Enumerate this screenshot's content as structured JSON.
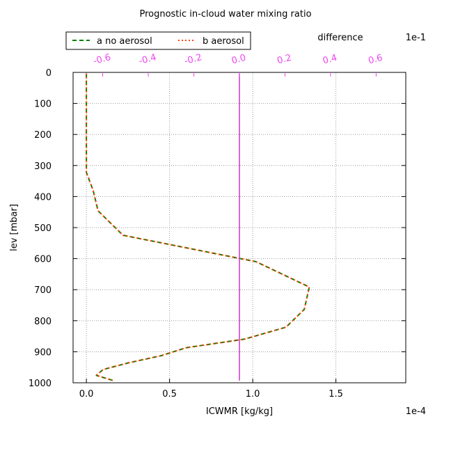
{
  "chart_data": {
    "type": "line",
    "title": "Prognostic in-cloud water mixing ratio",
    "xlabel": "ICWMR [kg/kg]",
    "ylabel": "lev [mbar]",
    "x_multiplier": "1e-4",
    "xlim": [
      -0.08,
      1.92
    ],
    "ylim": [
      1000,
      0
    ],
    "xticks": [
      0.0,
      0.5,
      1.0,
      1.5
    ],
    "xtick_labels": [
      "0.0",
      "0.5",
      "1.0",
      "1.5"
    ],
    "yticks": [
      0,
      100,
      200,
      300,
      400,
      500,
      600,
      700,
      800,
      900,
      1000
    ],
    "ytick_labels": [
      "0",
      "100",
      "200",
      "300",
      "400",
      "500",
      "600",
      "700",
      "800",
      "900",
      "1000"
    ],
    "grid": true,
    "legend_placement": "top-left",
    "lev": [
      3.6,
      7.6,
      14.4,
      24.6,
      38.3,
      54.6,
      72.0,
      87.8,
      103.3,
      121.5,
      142.9,
      168.2,
      197.9,
      232.8,
      273.9,
      322.2,
      379.1,
      445.9,
      524.6,
      609.8,
      691.4,
      763.4,
      820.9,
      859.5,
      887.0,
      912.6,
      936.2,
      957.5,
      976.3,
      992.6
    ],
    "series": [
      {
        "name": "a no aerosol",
        "color": "#007f00",
        "dash": "dashed",
        "values": [
          0.0,
          0.0,
          0.0,
          0.0,
          0.0,
          0.0,
          0.0,
          0.0,
          0.0,
          0.0,
          0.0,
          0.0,
          0.0,
          0.0,
          0.0,
          0.0,
          0.04,
          0.07,
          0.22,
          1.02,
          1.34,
          1.31,
          1.2,
          0.95,
          0.6,
          0.45,
          0.25,
          0.1,
          0.06,
          0.16
        ]
      },
      {
        "name": "b aerosol",
        "color": "#ff4500",
        "dash": "dotted",
        "values": [
          0.0,
          0.0,
          0.0,
          0.0,
          0.0,
          0.0,
          0.0,
          0.0,
          0.0,
          0.0,
          0.0,
          0.0,
          0.0,
          0.0,
          0.0,
          0.0,
          0.04,
          0.07,
          0.22,
          1.02,
          1.34,
          1.31,
          1.2,
          0.95,
          0.6,
          0.45,
          0.25,
          0.1,
          0.06,
          0.16
        ]
      },
      {
        "name": "difference",
        "color": "#cc33cc",
        "axis": "top",
        "values": [
          0.0,
          0.0,
          0.0,
          0.0,
          0.0,
          0.0,
          0.0,
          0.0,
          0.0,
          0.0,
          0.0,
          0.0,
          0.0,
          0.0,
          0.0,
          0.0,
          0.0,
          0.0,
          0.0,
          0.0,
          0.0,
          0.0,
          0.0,
          0.0,
          0.0,
          0.0,
          0.0,
          0.0,
          0.0,
          0.0
        ]
      }
    ],
    "legend_labels": [
      "a no aerosol",
      "b aerosol"
    ],
    "top_axis": {
      "label": "difference",
      "multiplier": "1e-1",
      "xlim": [
        -0.73,
        0.73
      ],
      "ticks": [
        -0.6,
        -0.4,
        -0.2,
        0.0,
        0.2,
        0.4,
        0.6
      ],
      "tick_labels": [
        "-0.6",
        "-0.4",
        "-0.2",
        "0.0",
        "0.2",
        "0.4",
        "0.6"
      ],
      "color": "#ee44ee"
    }
  }
}
